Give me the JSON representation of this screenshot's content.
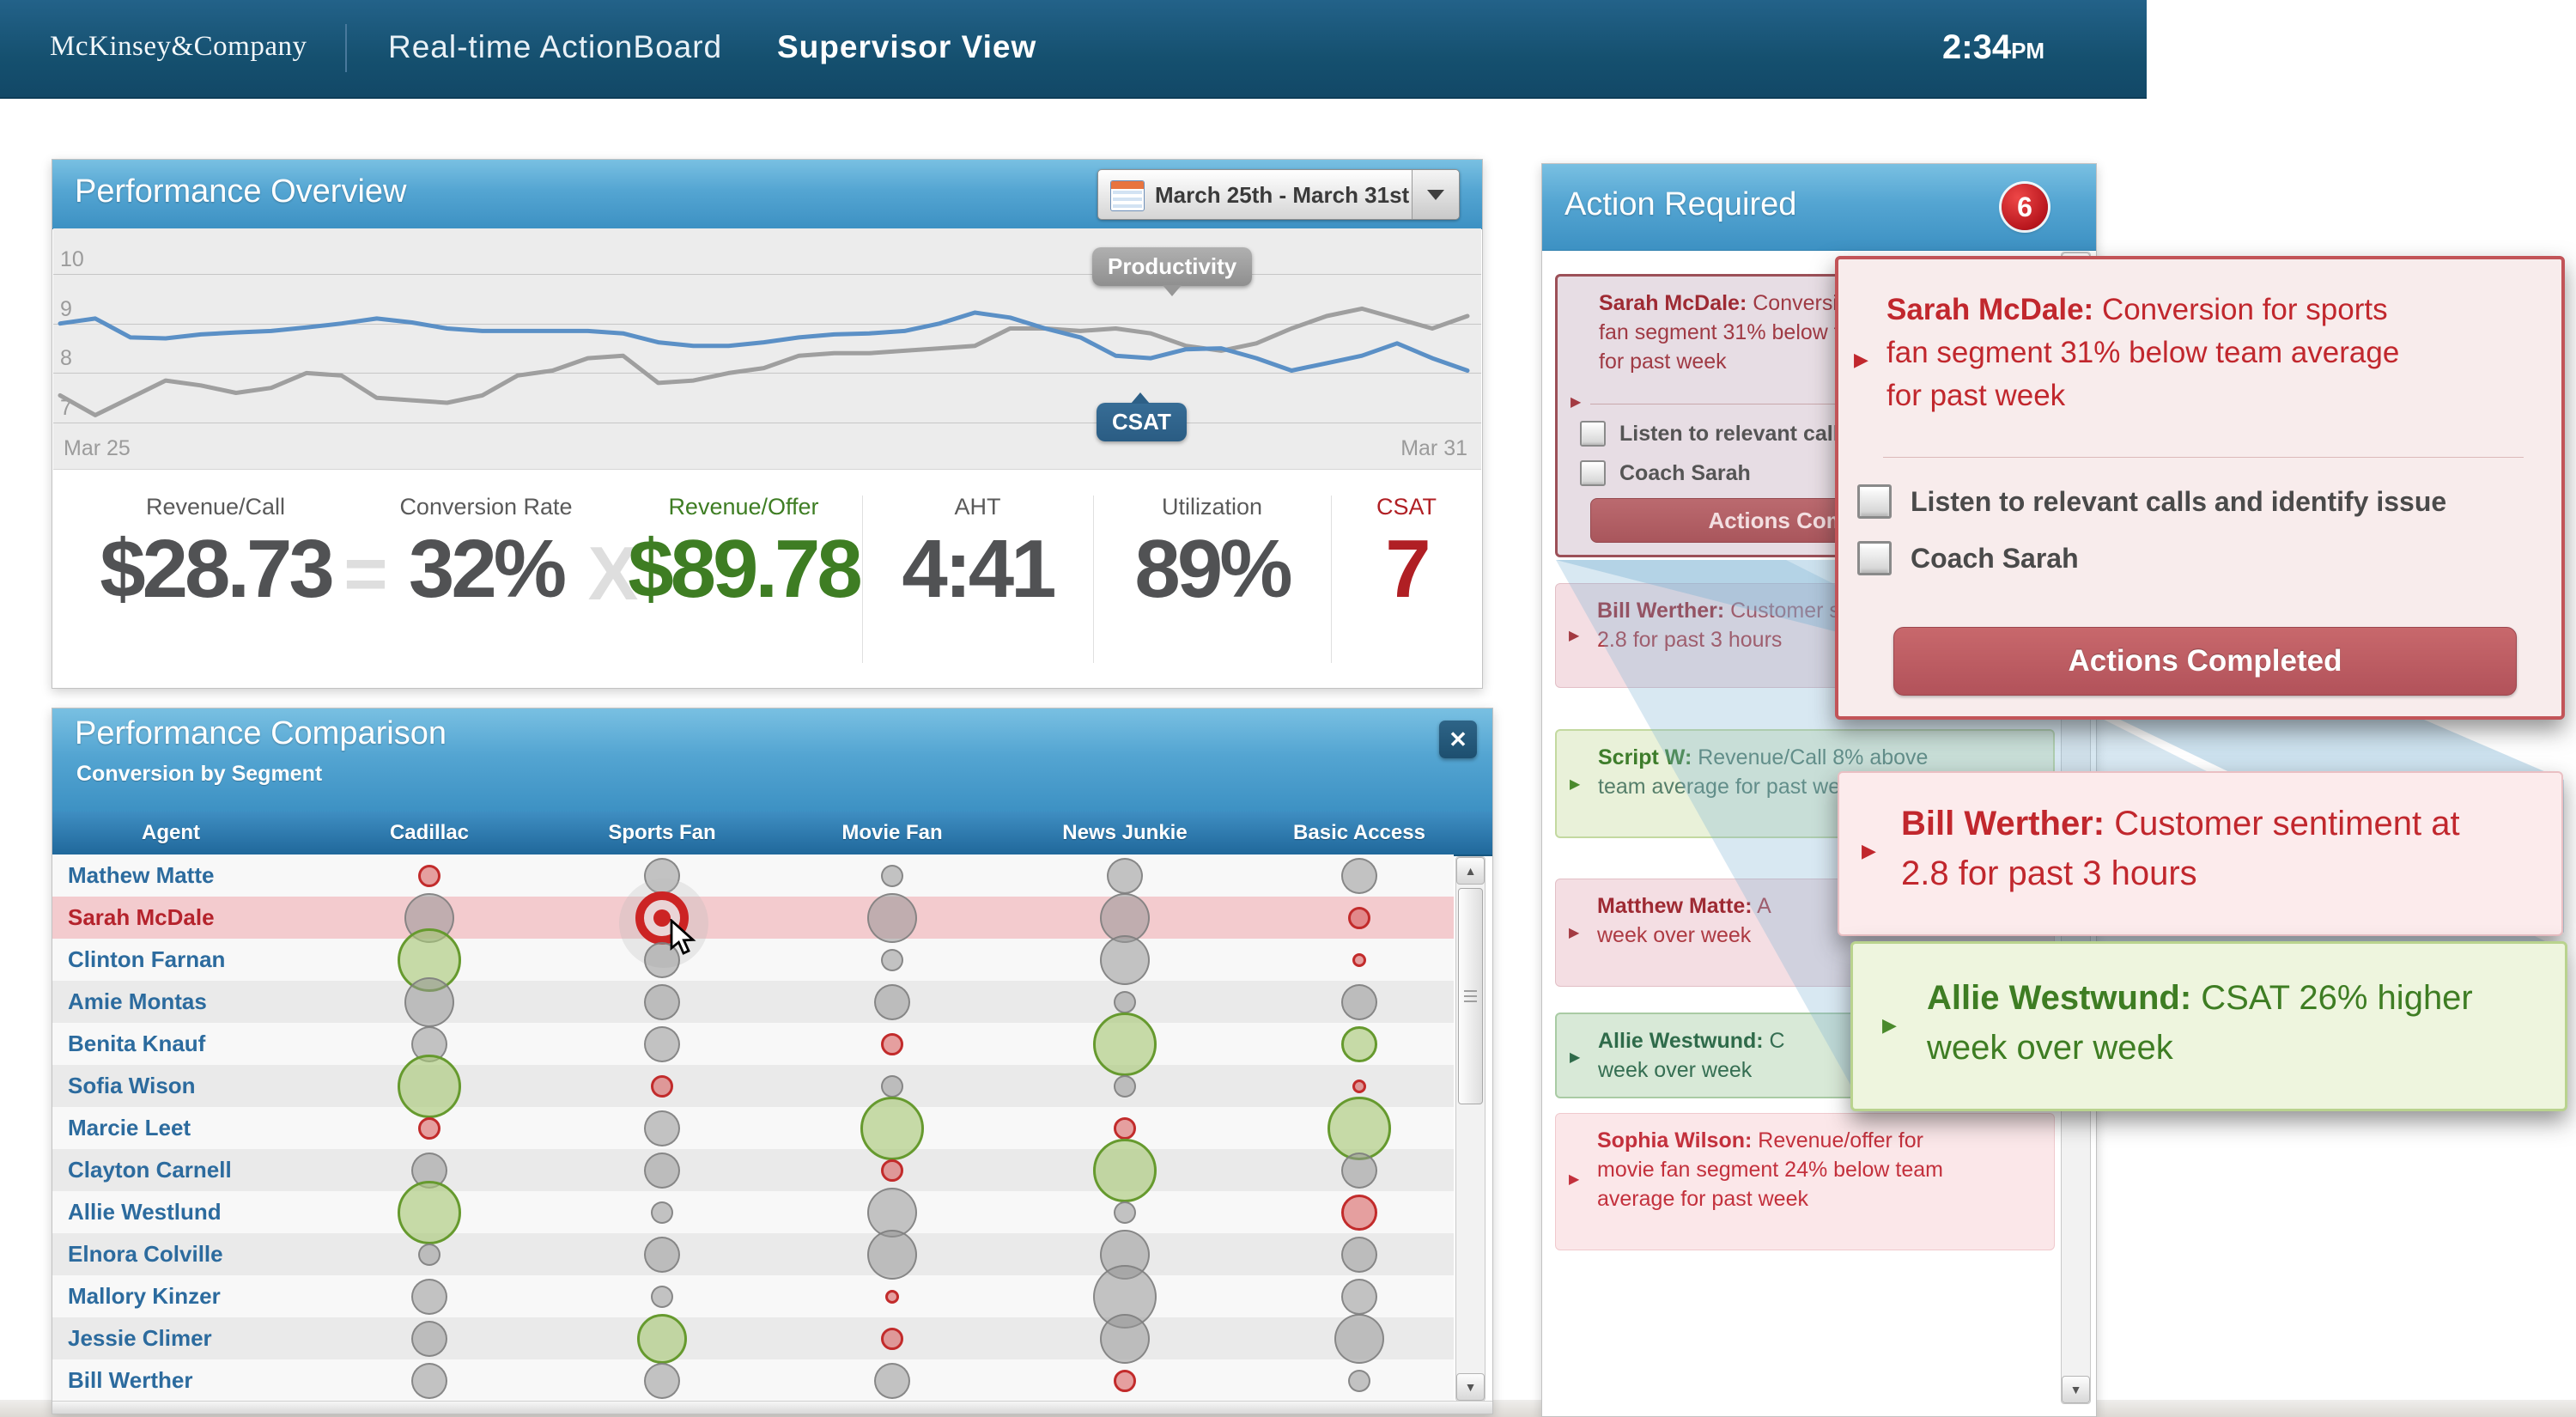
{
  "header": {
    "logo": "McKinsey&Company",
    "app_title": "Real-time ActionBoard",
    "view_title": "Supervisor View",
    "time": "2:34",
    "meridiem": "PM"
  },
  "overview": {
    "title": "Performance Overview",
    "date_range": "March 25th - March 31st",
    "kpis": [
      {
        "label": "Revenue/Call",
        "value": "$28.73",
        "accent": "none"
      },
      {
        "label": "Conversion Rate",
        "value": "32%",
        "accent": "none"
      },
      {
        "label": "Revenue/Offer",
        "value": "$89.78",
        "accent": "green"
      },
      {
        "label": "AHT",
        "value": "4:41",
        "accent": "none"
      },
      {
        "label": "Utilization",
        "value": "89%",
        "accent": "none"
      },
      {
        "label": "CSAT",
        "value": "7",
        "accent": "red"
      }
    ],
    "operators": {
      "equals": "=",
      "multiply": "X"
    }
  },
  "chart_data": {
    "type": "line",
    "title": "Performance Overview",
    "y_ticks": [
      10,
      9,
      8,
      7
    ],
    "ylim": [
      6.8,
      10.4
    ],
    "x_start_label": "Mar 25",
    "x_end_label": "Mar 31",
    "grid": true,
    "legend_position": "inline-callouts",
    "series": [
      {
        "name": "Productivity",
        "color": "#9f9f9f",
        "values": [
          7.55,
          7.15,
          7.5,
          7.85,
          7.75,
          7.6,
          7.7,
          8.0,
          7.95,
          7.5,
          7.45,
          7.4,
          7.55,
          7.95,
          8.05,
          8.3,
          8.35,
          7.8,
          7.85,
          8.0,
          8.1,
          8.35,
          8.4,
          8.4,
          8.45,
          8.5,
          8.55,
          8.9,
          8.9,
          8.85,
          8.9,
          8.8,
          8.55,
          8.45,
          8.6,
          8.9,
          9.15,
          9.3,
          9.1,
          8.9,
          9.15
        ]
      },
      {
        "name": "CSAT",
        "color": "#5b90c6",
        "values": [
          9.0,
          9.1,
          8.72,
          8.7,
          8.78,
          8.82,
          8.85,
          8.92,
          9.0,
          9.1,
          9.02,
          8.9,
          8.85,
          8.85,
          8.85,
          8.85,
          8.8,
          8.62,
          8.55,
          8.55,
          8.62,
          8.72,
          8.78,
          8.8,
          8.85,
          9.0,
          9.22,
          9.12,
          8.9,
          8.72,
          8.35,
          8.3,
          8.48,
          8.5,
          8.3,
          8.05,
          8.2,
          8.35,
          8.6,
          8.3,
          8.05
        ]
      }
    ],
    "annotations": [
      {
        "label": "Productivity",
        "series": "Productivity"
      },
      {
        "label": "CSAT",
        "series": "CSAT"
      }
    ]
  },
  "comparison": {
    "title": "Performance Comparison",
    "subtitle": "Conversion by Segment",
    "close_label": "✕",
    "columns": [
      "Agent",
      "Cadillac",
      "Sports Fan",
      "Movie Fan",
      "News Junkie",
      "Basic Access"
    ],
    "rows": [
      {
        "name": "Mathew Matte",
        "highlight": false,
        "bubbles": [
          "s-red",
          "m-gray",
          "s-gray",
          "m-gray",
          "m-gray"
        ]
      },
      {
        "name": "Sarah McDale",
        "highlight": true,
        "bubbles": [
          "l-gray",
          "target",
          "l-gray",
          "l-gray",
          "s-red"
        ]
      },
      {
        "name": "Clinton Farnan",
        "highlight": false,
        "bubbles": [
          "xl-green",
          "m-gray",
          "s-gray",
          "l-gray",
          "xs-red"
        ]
      },
      {
        "name": "Amie Montas",
        "highlight": false,
        "bubbles": [
          "l-gray",
          "m-gray",
          "m-gray",
          "s-gray",
          "m-gray"
        ]
      },
      {
        "name": "Benita Knauf",
        "highlight": false,
        "bubbles": [
          "m-gray",
          "m-gray",
          "s-red",
          "xl-green",
          "m-green"
        ]
      },
      {
        "name": "Sofia Wison",
        "highlight": false,
        "bubbles": [
          "xl-green",
          "s-red",
          "s-gray",
          "s-gray",
          "xs-red"
        ]
      },
      {
        "name": "Marcie Leet",
        "highlight": false,
        "bubbles": [
          "s-red",
          "m-gray",
          "xl-green",
          "s-red",
          "xl-green"
        ]
      },
      {
        "name": "Clayton Carnell",
        "highlight": false,
        "bubbles": [
          "m-gray",
          "m-gray",
          "s-red",
          "xl-green",
          "m-gray"
        ]
      },
      {
        "name": "Allie Westlund",
        "highlight": false,
        "bubbles": [
          "xl-green",
          "s-gray",
          "l-gray",
          "s-gray",
          "m-red"
        ]
      },
      {
        "name": "Elnora Colville",
        "highlight": false,
        "bubbles": [
          "s-gray",
          "m-gray",
          "l-gray",
          "l-gray",
          "m-gray"
        ]
      },
      {
        "name": "Mallory Kinzer",
        "highlight": false,
        "bubbles": [
          "m-gray",
          "s-gray",
          "xs-red",
          "xl-gray",
          "m-gray"
        ]
      },
      {
        "name": "Jessie Climer",
        "highlight": false,
        "bubbles": [
          "m-gray",
          "l-green",
          "s-red",
          "l-gray",
          "l-gray"
        ]
      },
      {
        "name": "Bill Werther",
        "highlight": false,
        "bubbles": [
          "m-gray",
          "m-gray",
          "m-gray",
          "s-red",
          "s-gray"
        ]
      }
    ]
  },
  "action": {
    "title": "Action Required",
    "badge": "6",
    "cards": [
      {
        "tone": "redsel",
        "name": "Sarah McDale:",
        "lines": [
          "Conversion for sports",
          "fan segment 31% below team average",
          "for past week"
        ],
        "checkboxes": [
          "Listen to relevant calls and identify issue",
          "Coach Sarah"
        ],
        "button": "Actions Completed"
      },
      {
        "tone": "red",
        "name": "Bill Werther:",
        "lines": [
          "Customer sentiment at",
          "2.8 for past 3 hours"
        ]
      },
      {
        "tone": "green",
        "name": "Script W:",
        "lines": [
          "Revenue/Call 8% above",
          "team average for past week"
        ]
      },
      {
        "tone": "red",
        "name": "Matthew Matte:",
        "lines": [
          "A",
          "week over week"
        ]
      },
      {
        "tone": "teal",
        "name": "Allie Westwund:",
        "lines": [
          "C",
          "week over week"
        ]
      },
      {
        "tone": "pink",
        "name": "Sophia Wilson:",
        "lines": [
          "Revenue/offer for",
          "movie fan segment 24% below team",
          "average for past week"
        ]
      }
    ]
  },
  "popups": {
    "sarah": {
      "name": "Sarah McDale:",
      "lines": [
        "Conversion for sports",
        "fan segment 31% below team average",
        "for past week"
      ],
      "checkboxes": [
        "Listen to relevant calls and identify issue",
        "Coach Sarah"
      ],
      "button": "Actions Completed"
    },
    "bill": {
      "name": "Bill Werther:",
      "lines": [
        "Customer sentiment at",
        "2.8 for past 3 hours"
      ]
    },
    "allie": {
      "name": "Allie Westwund:",
      "lines": [
        "CSAT 26% higher",
        "week over week"
      ]
    }
  },
  "colors": {
    "header_blue": "#15506f",
    "panel_blue": "#3d91c3",
    "col_header_blue": "#20689b",
    "alert_red": "#c1272d",
    "positive_green": "#3e7d23",
    "csat_line": "#5b90c6",
    "productivity_line": "#9f9f9f",
    "badge_red": "#b5131b",
    "highlight_row_pink": "#f3cbce"
  }
}
